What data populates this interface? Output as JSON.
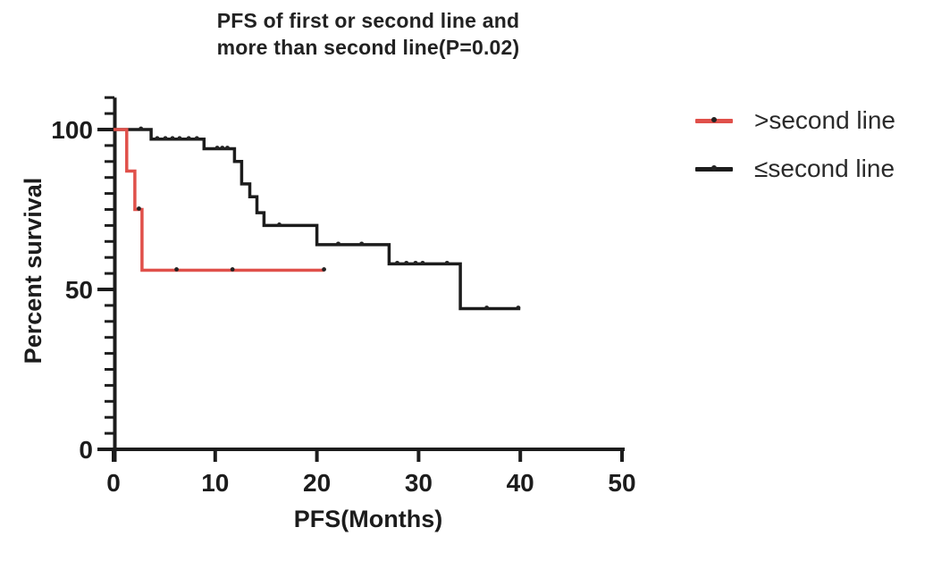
{
  "chart_data": {
    "type": "line",
    "subtype": "kaplan-meier-step",
    "title": "PFS of first or second line and more than second line(P=0.02)",
    "title_lines": [
      "PFS of first or second line and",
      "more than second line(P=0.02)"
    ],
    "xlabel": "PFS(Months)",
    "ylabel": "Percent survival",
    "xlim": [
      0,
      50
    ],
    "ylim": [
      0,
      110
    ],
    "x_ticks": [
      0,
      10,
      20,
      30,
      40,
      50
    ],
    "y_ticks": [
      0,
      50,
      100
    ],
    "y_minor_step": 5,
    "grid": false,
    "legend_position": "right-outside",
    "axis_color": "#1c1c1c",
    "series": [
      {
        "name": ">second line",
        "color": "#e0504a",
        "censor_marker_color": "#222222",
        "steps": [
          [
            0,
            100
          ],
          [
            1.3,
            100
          ],
          [
            1.3,
            87
          ],
          [
            2.1,
            87
          ],
          [
            2.1,
            75
          ],
          [
            2.8,
            75
          ],
          [
            2.8,
            56
          ],
          [
            20.7,
            56
          ]
        ],
        "censors": [
          [
            2.5,
            75
          ],
          [
            6.2,
            56
          ],
          [
            11.7,
            56
          ],
          [
            20.7,
            56
          ]
        ]
      },
      {
        "name": "≤second line",
        "color": "#1c1c1c",
        "censor_marker_color": "#222222",
        "steps": [
          [
            0,
            100
          ],
          [
            3.7,
            100
          ],
          [
            3.7,
            97
          ],
          [
            8.9,
            97
          ],
          [
            8.9,
            94
          ],
          [
            11.9,
            94
          ],
          [
            11.9,
            90
          ],
          [
            12.6,
            90
          ],
          [
            12.6,
            83
          ],
          [
            13.4,
            83
          ],
          [
            13.4,
            79
          ],
          [
            14.1,
            79
          ],
          [
            14.1,
            74
          ],
          [
            14.8,
            74
          ],
          [
            14.8,
            70
          ],
          [
            20.0,
            70
          ],
          [
            20.0,
            64
          ],
          [
            27.1,
            64
          ],
          [
            27.1,
            58
          ],
          [
            34.1,
            58
          ],
          [
            34.1,
            44
          ],
          [
            40,
            44
          ]
        ],
        "censors": [
          [
            2.7,
            100
          ],
          [
            4.3,
            97
          ],
          [
            5.1,
            97
          ],
          [
            5.8,
            97
          ],
          [
            6.5,
            97
          ],
          [
            7.4,
            97
          ],
          [
            8.2,
            97
          ],
          [
            10.2,
            94
          ],
          [
            10.7,
            94
          ],
          [
            11.2,
            94
          ],
          [
            16.3,
            70
          ],
          [
            22.1,
            64
          ],
          [
            24.4,
            64
          ],
          [
            27.9,
            58
          ],
          [
            28.8,
            58
          ],
          [
            29.7,
            58
          ],
          [
            30.4,
            58
          ],
          [
            32.8,
            58
          ],
          [
            36.7,
            44
          ],
          [
            39.8,
            44
          ]
        ]
      }
    ]
  }
}
